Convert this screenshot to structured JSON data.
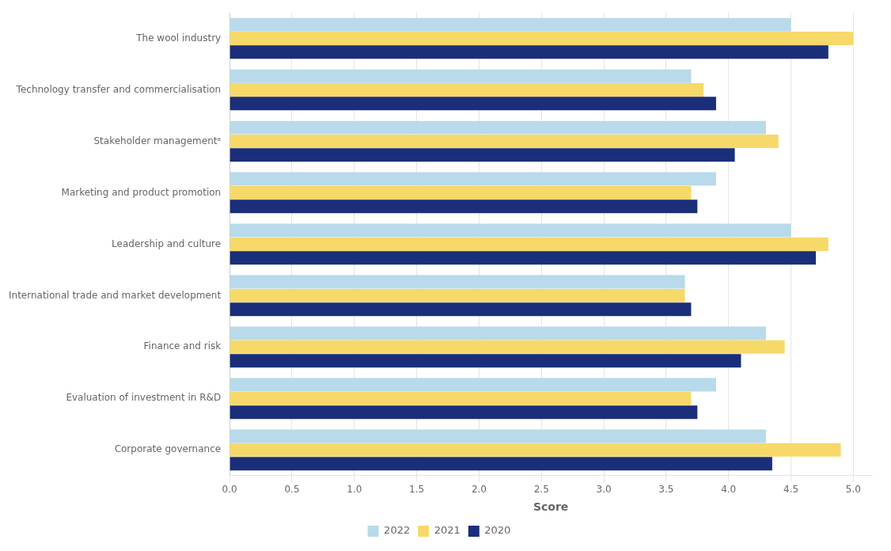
{
  "chart_data": {
    "type": "bar",
    "orientation": "horizontal",
    "categories": [
      "The wool industry",
      "Technology transfer and commercialisation",
      "Stakeholder managementᵃ",
      "Marketing and product promotion",
      "Leadership and culture",
      "International trade and market development",
      "Finance and risk",
      "Evaluation of investment in R&D",
      "Corporate governance"
    ],
    "series": [
      {
        "name": "2022",
        "color": "#b8daea",
        "values": [
          4.5,
          3.7,
          4.3,
          3.9,
          4.5,
          3.65,
          4.3,
          3.9,
          4.3
        ]
      },
      {
        "name": "2021",
        "color": "#f7d96a",
        "values": [
          5.0,
          3.8,
          4.4,
          3.7,
          4.8,
          3.65,
          4.45,
          3.7,
          4.9
        ]
      },
      {
        "name": "2020",
        "color": "#1a2e7a",
        "values": [
          4.8,
          3.9,
          4.05,
          3.75,
          4.7,
          3.7,
          4.1,
          3.75,
          4.35
        ]
      }
    ],
    "xlabel": "Score",
    "xlim": [
      0,
      5.15
    ],
    "xticks": [
      {
        "value": 0,
        "label": "0.0"
      },
      0.5,
      {
        "value": 1,
        "label": "1.0"
      },
      1.5,
      {
        "value": 2,
        "label": "2.0"
      },
      2.5,
      {
        "value": 3,
        "label": "3.0"
      },
      3.5,
      {
        "value": 4,
        "label": "4.0"
      },
      4.5,
      {
        "value": 5,
        "label": "5.0"
      }
    ],
    "grid": true,
    "legend": "bottom"
  }
}
